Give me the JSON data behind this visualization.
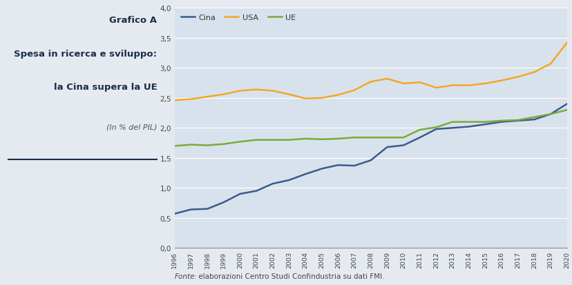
{
  "years": [
    1996,
    1997,
    1998,
    1999,
    2000,
    2001,
    2002,
    2003,
    2004,
    2005,
    2006,
    2007,
    2008,
    2009,
    2010,
    2011,
    2012,
    2013,
    2014,
    2015,
    2016,
    2017,
    2018,
    2019,
    2020
  ],
  "cina": [
    0.57,
    0.64,
    0.65,
    0.76,
    0.9,
    0.95,
    1.07,
    1.13,
    1.23,
    1.32,
    1.38,
    1.37,
    1.46,
    1.68,
    1.71,
    1.84,
    1.98,
    2.0,
    2.02,
    2.06,
    2.1,
    2.12,
    2.14,
    2.23,
    2.4
  ],
  "usa": [
    2.46,
    2.48,
    2.52,
    2.56,
    2.62,
    2.64,
    2.62,
    2.56,
    2.49,
    2.5,
    2.55,
    2.63,
    2.77,
    2.82,
    2.74,
    2.76,
    2.67,
    2.71,
    2.71,
    2.74,
    2.79,
    2.85,
    2.93,
    3.07,
    3.42
  ],
  "ue": [
    1.7,
    1.72,
    1.71,
    1.73,
    1.77,
    1.8,
    1.8,
    1.8,
    1.82,
    1.81,
    1.82,
    1.84,
    1.84,
    1.84,
    1.84,
    1.97,
    2.01,
    2.1,
    2.1,
    2.1,
    2.12,
    2.13,
    2.18,
    2.23,
    2.3
  ],
  "cina_color": "#3a5a8c",
  "usa_color": "#f5a623",
  "ue_color": "#7aaa3a",
  "chart_bg_color": "#d8e2ec",
  "fig_bg_color": "#e5eaf0",
  "title_line1": "Grafico A",
  "title_line2": "Spesa in ricerca e sviluppo:",
  "title_line3": "la Cina supera la UE",
  "subtitle": "(In % del PIL)",
  "source_italic": "Fonte:",
  "source_rest": " elaborazioni Centro Studi Confindustria su dati FMI.",
  "title_color": "#1a2e4a",
  "subtitle_color": "#555555",
  "source_color": "#444444",
  "ylim": [
    0.0,
    4.0
  ],
  "yticks": [
    0.0,
    0.5,
    1.0,
    1.5,
    2.0,
    2.5,
    3.0,
    3.5,
    4.0
  ]
}
